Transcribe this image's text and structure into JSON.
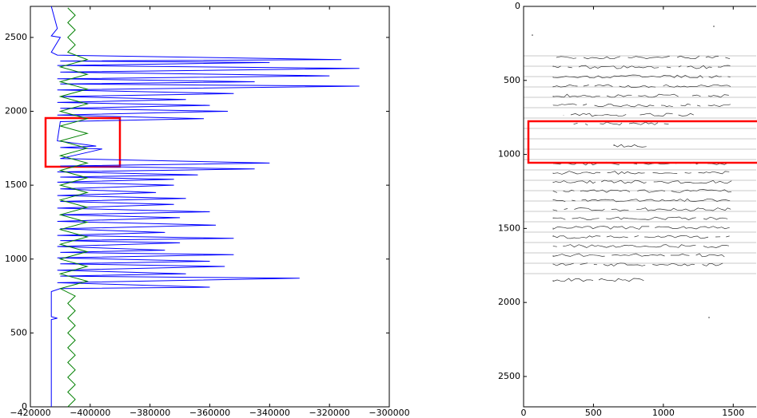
{
  "chart_data": [
    {
      "type": "line",
      "xlim": [
        -420000,
        -300000
      ],
      "ylim": [
        0,
        2710
      ],
      "xticks": [
        {
          "value": -420000,
          "label": "−420000"
        },
        {
          "value": -400000,
          "label": "−400000"
        },
        {
          "value": -380000,
          "label": "−380000"
        },
        {
          "value": -360000,
          "label": "−360000"
        },
        {
          "value": -340000,
          "label": "−340000"
        },
        {
          "value": -320000,
          "label": "−320000"
        },
        {
          "value": -300000,
          "label": "−300000"
        }
      ],
      "yticks": [
        0,
        500,
        1000,
        1500,
        2000,
        2500
      ],
      "series": [
        {
          "color": "#0000ff",
          "y": [
            0,
            590,
            600,
            610,
            780,
            800,
            810,
            840,
            870,
            885,
            900,
            925,
            950,
            968,
            985,
            1008,
            1030,
            1045,
            1060,
            1085,
            1110,
            1125,
            1140,
            1160,
            1180,
            1205,
            1230,
            1255,
            1280,
            1300,
            1320,
            1345,
            1370,
            1390,
            1410,
            1430,
            1450,
            1475,
            1500,
            1520,
            1540,
            1555,
            1570,
            1590,
            1610,
            1630,
            1650,
            1680,
            1745,
            1755,
            1765,
            1800,
            1930,
            1950,
            1975,
            2000,
            2020,
            2040,
            2060,
            2080,
            2100,
            2120,
            2145,
            2170,
            2185,
            2200,
            2220,
            2240,
            2265,
            2290,
            2310,
            2330,
            2340,
            2350,
            2380,
            2400,
            2500,
            2510,
            2560,
            2710
          ],
          "values": [
            -413000,
            -413000,
            -411000,
            -413000,
            -413000,
            -410000,
            -360000,
            -411000,
            -330000,
            -410000,
            -368000,
            -411000,
            -355000,
            -410000,
            -360000,
            -411000,
            -352000,
            -410000,
            -375000,
            -411000,
            -370000,
            -410000,
            -352000,
            -411000,
            -375000,
            -410000,
            -358000,
            -411000,
            -370000,
            -410000,
            -360000,
            -411000,
            -372000,
            -410000,
            -368000,
            -411000,
            -378000,
            -410000,
            -372000,
            -411000,
            -372000,
            -410000,
            -364000,
            -411000,
            -345000,
            -410000,
            -340000,
            -410000,
            -396000,
            -410000,
            -398000,
            -411000,
            -410000,
            -362000,
            -411000,
            -354000,
            -410000,
            -360000,
            -411000,
            -368000,
            -410000,
            -352000,
            -411000,
            -310000,
            -410000,
            -345000,
            -411000,
            -320000,
            -410000,
            -310000,
            -411000,
            -340000,
            -410000,
            -316000,
            -411000,
            -413000,
            -410000,
            -413000,
            -411000,
            -413000
          ]
        },
        {
          "color": "#008000",
          "y": [
            0,
            50,
            100,
            150,
            200,
            250,
            300,
            350,
            400,
            450,
            500,
            550,
            600,
            650,
            700,
            750,
            800,
            850,
            900,
            950,
            1000,
            1050,
            1100,
            1150,
            1200,
            1250,
            1300,
            1350,
            1400,
            1450,
            1500,
            1550,
            1600,
            1650,
            1700,
            1750,
            1800,
            1850,
            1900,
            1950,
            2000,
            2050,
            2100,
            2150,
            2200,
            2250,
            2300,
            2350,
            2400,
            2450,
            2500,
            2550,
            2600,
            2650,
            2700
          ],
          "values": [
            -407500,
            -405000,
            -407500,
            -405000,
            -407500,
            -405000,
            -407500,
            -405000,
            -407500,
            -405000,
            -407500,
            -405000,
            -407500,
            -405000,
            -407500,
            -405000,
            -410000,
            -401000,
            -410000,
            -401000,
            -410000,
            -401000,
            -410000,
            -401000,
            -410000,
            -401000,
            -410000,
            -401000,
            -410000,
            -401000,
            -410000,
            -401000,
            -410000,
            -401000,
            -410000,
            -401000,
            -410000,
            -401000,
            -410000,
            -401000,
            -410000,
            -401000,
            -410000,
            -401000,
            -410000,
            -401000,
            -410000,
            -401000,
            -407500,
            -405000,
            -407500,
            -405000,
            -407500,
            -405000,
            -407500
          ]
        }
      ]
    },
    {
      "type": "image",
      "xlim": [
        0,
        1670
      ],
      "ylim": [
        2705,
        0
      ],
      "xticks": [
        0,
        500,
        1000,
        1500
      ],
      "yticks": [
        0,
        500,
        1000,
        1500,
        2000,
        2500
      ]
    }
  ]
}
